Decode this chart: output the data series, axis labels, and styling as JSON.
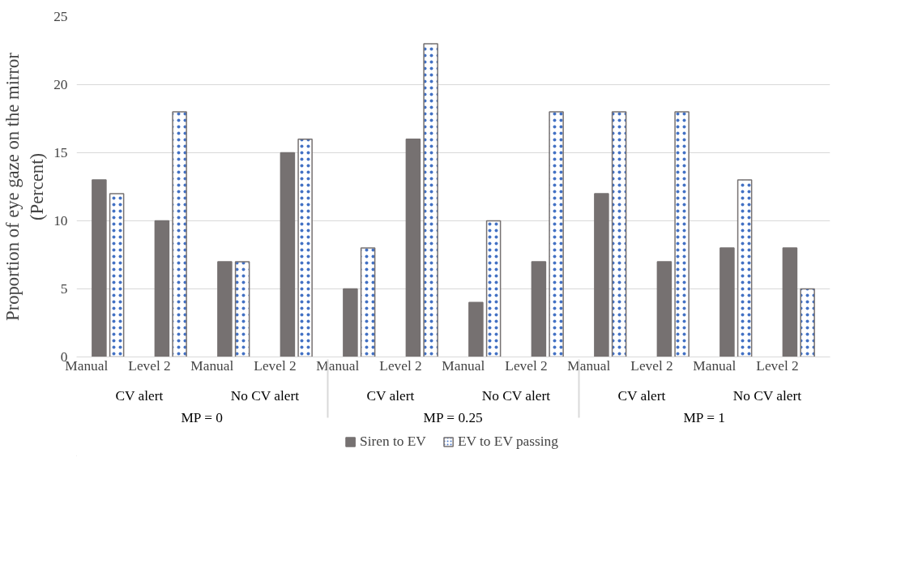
{
  "chart_data": {
    "type": "bar",
    "ylabel": "Proportion of eye gaze on the mirror\n(Percent)",
    "categories": [
      "Manual",
      "Level 2",
      "Manual",
      "Level 2",
      "Manual",
      "Level 2",
      "Manual",
      "Level 2",
      "Manual",
      "Level 2",
      "Manual",
      "Level 2"
    ],
    "annotations": [
      "CV alert",
      "No CV alert",
      "CV alert",
      "No CV alert",
      "CV alert",
      "No CV alert",
      "MP = 0",
      "MP = 0.25",
      "MP = 1"
    ],
    "series": [
      {
        "name": "Siren to EV",
        "color": "#767171",
        "values": [
          13,
          10,
          7,
          15,
          5,
          16,
          4,
          7,
          12,
          7,
          8,
          8
        ]
      },
      {
        "name": "EV to EV passing",
        "color": "#ffffff",
        "values": [
          12,
          18,
          7,
          16,
          8,
          23,
          10,
          18,
          18,
          18,
          13,
          5
        ]
      }
    ],
    "ylim": [
      0,
      25
    ],
    "yticks": [
      0,
      5,
      10,
      15,
      20,
      25
    ],
    "grid": "y",
    "legend": "bottom"
  }
}
